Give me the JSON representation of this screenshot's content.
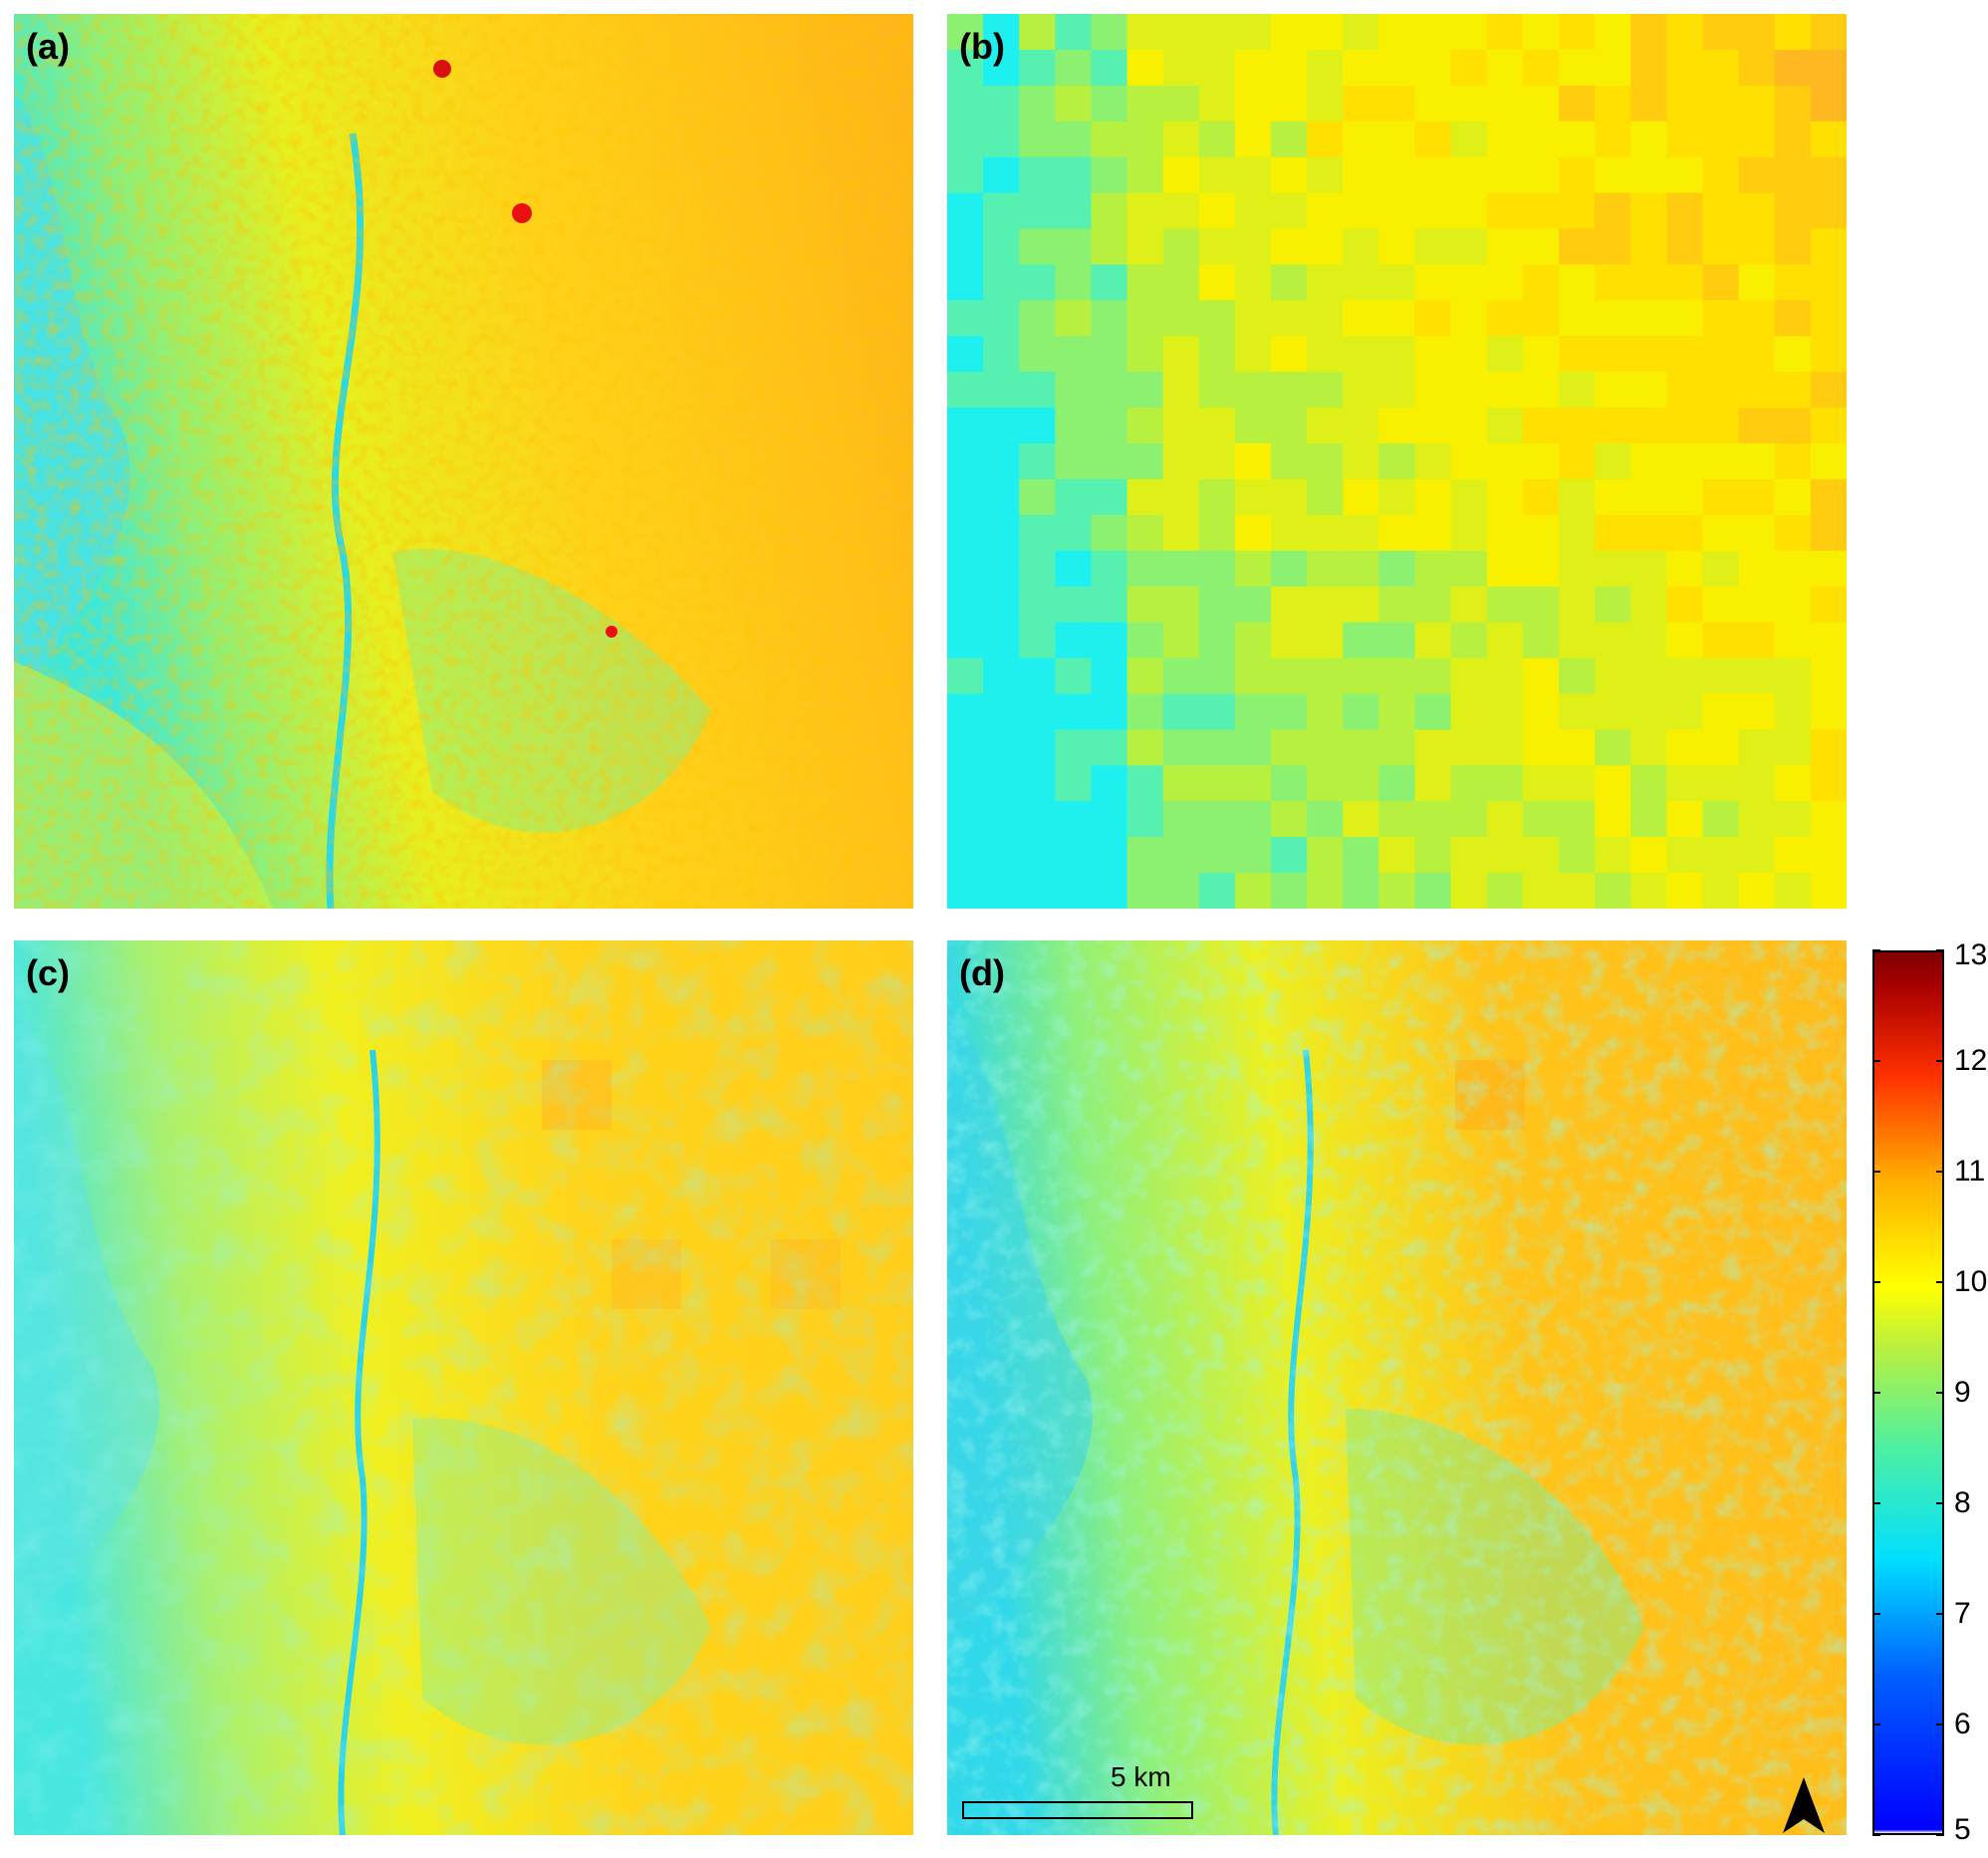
{
  "panels": [
    {
      "id": "a",
      "label": "(a)",
      "style": "fine"
    },
    {
      "id": "b",
      "label": "(b)",
      "style": "coarse"
    },
    {
      "id": "c",
      "label": "(c)",
      "style": "blend"
    },
    {
      "id": "d",
      "label": "(d)",
      "style": "fine"
    }
  ],
  "colorbar": {
    "min": 5,
    "max": 13,
    "ticks": [
      "13",
      "12",
      "11",
      "10",
      "9",
      "8",
      "7",
      "6",
      "5"
    ]
  },
  "scale_bar": {
    "label": "5 km"
  },
  "north_arrow": {
    "icon": "north-arrow-icon"
  },
  "colors": {
    "cyan": "#20e8f0",
    "green": "#9af050",
    "yellow": "#f6f000",
    "orange": "#ffb800",
    "red": "#e80000"
  }
}
